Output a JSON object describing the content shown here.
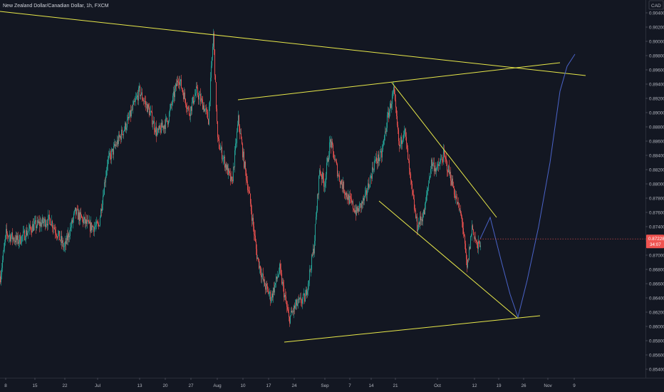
{
  "header": {
    "title": "New Zealand Dollar/Canadian Dollar, 1h, FXCM"
  },
  "price_scale": {
    "currency": "CAD",
    "current_price": "0.87228",
    "countdown": "34:07"
  },
  "colors": {
    "background": "#131722",
    "up_candle": "#26a69a",
    "down_candle": "#ef5350",
    "trendline": "#e8e84a",
    "projection": "#4a63c8",
    "axis_text": "#b2b5be",
    "price_badge": "#ef5350"
  },
  "chart_data": {
    "type": "candlestick",
    "symbol": "NZDCAD",
    "timeframe": "1h",
    "y_ticks": [
      0.854,
      0.856,
      0.858,
      0.86,
      0.862,
      0.864,
      0.866,
      0.868,
      0.87,
      0.872,
      0.874,
      0.876,
      0.878,
      0.88,
      0.882,
      0.884,
      0.886,
      0.888,
      0.89,
      0.892,
      0.894,
      0.896,
      0.898,
      0.9,
      0.902,
      0.904
    ],
    "y_tick_labels": [
      "0.85400",
      "0.85600",
      "0.85800",
      "0.86000",
      "0.86200",
      "0.86400",
      "0.86600",
      "0.86800",
      "0.87000",
      "0.87200",
      "0.87400",
      "0.87600",
      "0.87800",
      "0.88000",
      "0.88200",
      "0.88400",
      "0.88600",
      "0.88800",
      "0.89000",
      "0.89200",
      "0.89400",
      "0.89600",
      "0.89800",
      "0.90000",
      "0.90200",
      "0.90400"
    ],
    "x_ticks": [
      {
        "i": 8,
        "label": "8"
      },
      {
        "i": 49,
        "label": "15"
      },
      {
        "i": 91,
        "label": "22"
      },
      {
        "i": 137,
        "label": "Jul"
      },
      {
        "i": 196,
        "label": "13"
      },
      {
        "i": 232,
        "label": "20"
      },
      {
        "i": 268,
        "label": "27"
      },
      {
        "i": 305,
        "label": "Aug"
      },
      {
        "i": 341,
        "label": "10"
      },
      {
        "i": 377,
        "label": "17"
      },
      {
        "i": 413,
        "label": "24"
      },
      {
        "i": 456,
        "label": "Sep"
      },
      {
        "i": 491,
        "label": "7"
      },
      {
        "i": 521,
        "label": "14"
      },
      {
        "i": 555,
        "label": "21"
      },
      {
        "i": 614,
        "label": "Oct"
      },
      {
        "i": 666,
        "label": "12"
      },
      {
        "i": 700,
        "label": "19"
      },
      {
        "i": 735,
        "label": "26"
      },
      {
        "i": 769,
        "label": "Nov"
      },
      {
        "i": 806,
        "label": "9"
      }
    ],
    "price_path": [
      [
        0,
        0.867
      ],
      [
        8,
        0.873
      ],
      [
        25,
        0.872
      ],
      [
        45,
        0.874
      ],
      [
        70,
        0.875
      ],
      [
        90,
        0.871
      ],
      [
        105,
        0.876
      ],
      [
        125,
        0.874
      ],
      [
        138,
        0.874
      ],
      [
        150,
        0.883
      ],
      [
        165,
        0.886
      ],
      [
        180,
        0.889
      ],
      [
        195,
        0.893
      ],
      [
        210,
        0.89
      ],
      [
        220,
        0.887
      ],
      [
        235,
        0.889
      ],
      [
        250,
        0.895
      ],
      [
        265,
        0.89
      ],
      [
        275,
        0.893
      ],
      [
        285,
        0.891
      ],
      [
        292,
        0.889
      ],
      [
        299,
        0.901
      ],
      [
        305,
        0.886
      ],
      [
        315,
        0.883
      ],
      [
        325,
        0.88
      ],
      [
        334,
        0.889
      ],
      [
        342,
        0.883
      ],
      [
        350,
        0.878
      ],
      [
        360,
        0.87
      ],
      [
        370,
        0.866
      ],
      [
        380,
        0.864
      ],
      [
        392,
        0.868
      ],
      [
        405,
        0.861
      ],
      [
        415,
        0.863
      ],
      [
        428,
        0.864
      ],
      [
        440,
        0.871
      ],
      [
        448,
        0.882
      ],
      [
        455,
        0.88
      ],
      [
        463,
        0.886
      ],
      [
        475,
        0.881
      ],
      [
        488,
        0.878
      ],
      [
        500,
        0.876
      ],
      [
        512,
        0.878
      ],
      [
        525,
        0.883
      ],
      [
        535,
        0.884
      ],
      [
        543,
        0.889
      ],
      [
        552,
        0.893
      ],
      [
        560,
        0.885
      ],
      [
        567,
        0.888
      ],
      [
        576,
        0.88
      ],
      [
        585,
        0.874
      ],
      [
        595,
        0.876
      ],
      [
        605,
        0.883
      ],
      [
        613,
        0.882
      ],
      [
        622,
        0.884
      ],
      [
        632,
        0.881
      ],
      [
        642,
        0.877
      ],
      [
        648,
        0.875
      ],
      [
        655,
        0.868
      ],
      [
        662,
        0.874
      ],
      [
        670,
        0.871
      ],
      [
        674,
        0.872
      ]
    ],
    "trendlines": [
      {
        "from": [
          0,
          0.9042
        ],
        "to": [
          822,
          0.8952
        ]
      },
      {
        "from": [
          334,
          0.8918
        ],
        "to": [
          786,
          0.897
        ]
      },
      {
        "from": [
          399,
          0.8578
        ],
        "to": [
          758,
          0.8615
        ]
      },
      {
        "from": [
          550,
          0.8942
        ],
        "to": [
          697,
          0.8753
        ]
      },
      {
        "from": [
          532,
          0.8776
        ],
        "to": [
          726,
          0.8612
        ]
      }
    ],
    "projection_path": [
      [
        674,
        0.87228
      ],
      [
        688,
        0.8753
      ],
      [
        704,
        0.869
      ],
      [
        716,
        0.8645
      ],
      [
        727,
        0.8613
      ],
      [
        740,
        0.8665
      ],
      [
        756,
        0.874
      ],
      [
        772,
        0.883
      ],
      [
        786,
        0.893
      ],
      [
        796,
        0.8965
      ],
      [
        807,
        0.8982
      ]
    ],
    "last_price": 0.87228,
    "ylim": [
      0.8528,
      0.9058
    ],
    "xlim": [
      0,
      906
    ]
  }
}
